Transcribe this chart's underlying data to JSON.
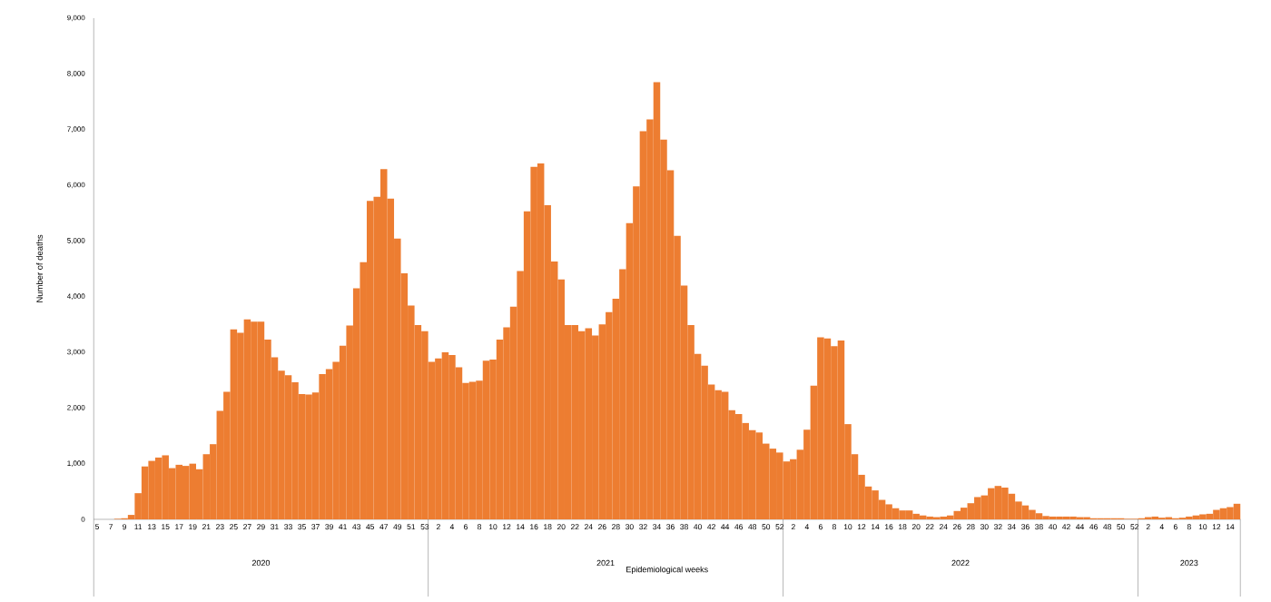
{
  "chart_data": {
    "type": "bar",
    "ylabel": "Number of deaths",
    "xlabel": "Epidemiological weeks",
    "color": "#ed7d31",
    "categories": [
      "5",
      null,
      "7",
      null,
      "9",
      null,
      "11",
      null,
      "13",
      null,
      "15",
      null,
      "17",
      null,
      "19",
      null,
      "21",
      null,
      "23",
      null,
      "25",
      null,
      "27",
      null,
      "29",
      null,
      "31",
      null,
      "33",
      null,
      "35",
      null,
      "37",
      null,
      "39",
      null,
      "41",
      null,
      "43",
      null,
      "45",
      null,
      "47",
      null,
      "49",
      null,
      "51",
      null,
      "53",
      null,
      "2",
      null,
      "4",
      null,
      "6",
      null,
      "8",
      null,
      "10",
      null,
      "12",
      null,
      "14",
      null,
      "16",
      null,
      "18",
      null,
      "20",
      null,
      "22",
      null,
      "24",
      null,
      "26",
      null,
      "28",
      null,
      "30",
      null,
      "32",
      null,
      "34",
      null,
      "36",
      null,
      "38",
      null,
      "40",
      null,
      "42",
      null,
      "44",
      null,
      "46",
      null,
      "48",
      null,
      "50",
      null,
      "52",
      null,
      "2",
      null,
      "4",
      null,
      "6",
      null,
      "8",
      null,
      "10",
      null,
      "12",
      null,
      "14",
      null,
      "16",
      null,
      "18",
      null,
      "20",
      null,
      "22",
      null,
      "24",
      null,
      "26",
      null,
      "28",
      null,
      "30",
      null,
      "32",
      null,
      "34",
      null,
      "36",
      null,
      "38",
      null,
      "40",
      null,
      "42",
      null,
      "44",
      null,
      "46",
      null,
      "48",
      null,
      "50",
      null,
      "52",
      null,
      "2",
      null,
      "4",
      null,
      "6",
      null,
      "8",
      null,
      "10",
      null,
      "12",
      null,
      "14",
      null
    ],
    "values": [
      0,
      0,
      0,
      10,
      20,
      80,
      470,
      950,
      1050,
      1110,
      1150,
      920,
      980,
      960,
      1000,
      900,
      1170,
      1350,
      1950,
      2290,
      3410,
      3350,
      3590,
      3550,
      3550,
      3230,
      2910,
      2670,
      2590,
      2460,
      2250,
      2240,
      2280,
      2610,
      2700,
      2830,
      3120,
      3480,
      4150,
      4620,
      5720,
      5790,
      6290,
      5760,
      5040,
      4420,
      3840,
      3490,
      3380,
      2830,
      2890,
      3000,
      2950,
      2730,
      2450,
      2470,
      2490,
      2850,
      2870,
      3230,
      3450,
      3820,
      4460,
      5530,
      6330,
      6390,
      5640,
      4630,
      4310,
      3490,
      3490,
      3380,
      3430,
      3300,
      3500,
      3720,
      3960,
      4490,
      5320,
      5980,
      6970,
      7180,
      7850,
      6820,
      6270,
      5090,
      4200,
      3490,
      2970,
      2760,
      2420,
      2320,
      2290,
      1960,
      1890,
      1730,
      1600,
      1560,
      1360,
      1270,
      1200,
      1040,
      1080,
      1250,
      1610,
      2400,
      3270,
      3250,
      3110,
      3210,
      1710,
      1170,
      800,
      590,
      520,
      350,
      270,
      200,
      160,
      160,
      100,
      70,
      50,
      40,
      50,
      70,
      150,
      210,
      290,
      400,
      430,
      560,
      600,
      570,
      460,
      320,
      250,
      170,
      110,
      60,
      50,
      50,
      50,
      50,
      40,
      40,
      20,
      20,
      20,
      20,
      20,
      10,
      10,
      20,
      40,
      50,
      30,
      40,
      20,
      30,
      50,
      70,
      90,
      100,
      170,
      200,
      220,
      280
    ],
    "ylim": [
      0,
      9000
    ],
    "yticks": [
      0,
      {
        "value": 1000,
        "label": "1,000"
      },
      {
        "value": 2000,
        "label": "2,000"
      },
      {
        "value": 3000,
        "label": "3,000"
      },
      {
        "value": 4000,
        "label": "4,000"
      },
      {
        "value": 5000,
        "label": "5,000"
      },
      {
        "value": 6000,
        "label": "6,000"
      },
      {
        "value": 7000,
        "label": "7,000"
      },
      {
        "value": 8000,
        "label": "8,000"
      },
      {
        "value": 9000,
        "label": "9,000"
      }
    ],
    "annotations": [
      "2020",
      "2021",
      "2022",
      "2023"
    ]
  }
}
